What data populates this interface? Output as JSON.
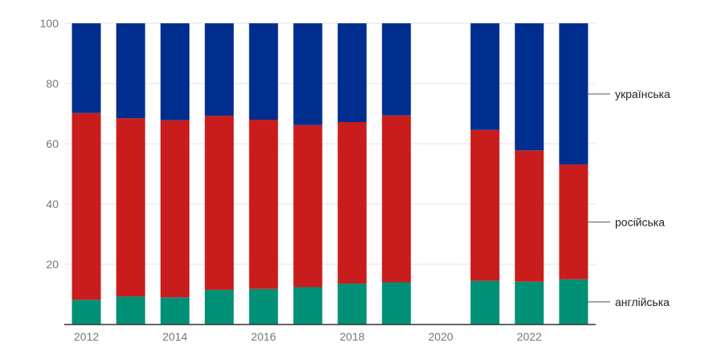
{
  "chart_data": {
    "type": "bar",
    "stacked": true,
    "x": [
      2012,
      2013,
      2014,
      2015,
      2016,
      2017,
      2018,
      2019,
      2020,
      2021,
      2022,
      2023
    ],
    "x_tick_labels": [
      "2012",
      "2014",
      "2016",
      "2018",
      "2020",
      "2022"
    ],
    "ylim": [
      0,
      100
    ],
    "y_ticks": [
      20,
      40,
      60,
      80,
      100
    ],
    "grid": true,
    "legend_position": "right, at series end",
    "series": [
      {
        "name": "англійська",
        "color": "#009076",
        "values": [
          8.2,
          9.3,
          9.0,
          11.5,
          11.8,
          12.4,
          13.6,
          14.0,
          null,
          14.5,
          14.2,
          15.0
        ]
      },
      {
        "name": "російська",
        "color": "#c91d1d",
        "values": [
          62.0,
          59.2,
          58.8,
          57.8,
          56.2,
          53.8,
          53.6,
          55.4,
          null,
          50.1,
          43.6,
          38.1
        ]
      },
      {
        "name": "українська",
        "color": "#002e8f",
        "values": [
          29.8,
          31.5,
          32.2,
          30.7,
          32.0,
          33.8,
          32.8,
          30.6,
          null,
          35.4,
          42.2,
          46.9
        ]
      }
    ]
  }
}
